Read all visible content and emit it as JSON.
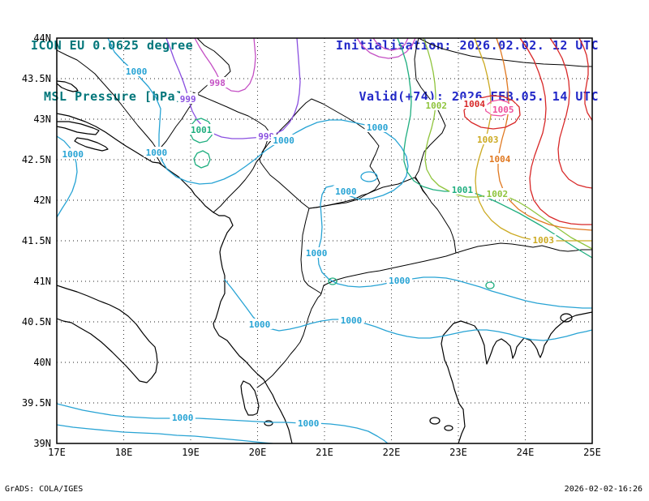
{
  "header": {
    "model": "ICON EU 0.0625 degree",
    "field": "MSL Pressure [hPa]",
    "init": "Initialisation: 2026.02.02. 12 UTC",
    "valid": "Valid(+74): 2026.FEB.05. 14 UTC"
  },
  "footer": {
    "left": "GrADS: COLA/IGES",
    "right": "2026-02-02-16:26"
  },
  "axes": {
    "y": [
      "44N",
      "43.5N",
      "43N",
      "42.5N",
      "42N",
      "41.5N",
      "41N",
      "40.5N",
      "40N",
      "39.5N",
      "39N"
    ],
    "x": [
      "17E",
      "18E",
      "19E",
      "20E",
      "21E",
      "22E",
      "23E",
      "24E",
      "25E"
    ]
  },
  "colors": {
    "header_left": "#00767a",
    "header_right": "#2228c8",
    "grid": "#222222",
    "land": "#000000",
    "c998": "#c44fc4",
    "c999": "#8a4fe0",
    "c1000": "#27a3d4",
    "c1001": "#1fae7f",
    "c1002": "#8fc43c",
    "c1003": "#ccaa22",
    "c1004": "#e07820",
    "c1005": "#ee4f9c",
    "red": "#d82828"
  },
  "chart_data": {
    "type": "contour_map",
    "title": "ICON EU 0.0625 degree — MSL Pressure [hPa]",
    "field": "MSL Pressure",
    "units": "hPa",
    "initialisation": "2026.02.02. 12 UTC",
    "valid": "Valid(+74): 2026.FEB.05. 14 UTC",
    "lon_range_deg_east": [
      17,
      25
    ],
    "lat_range_deg_north": [
      39,
      44
    ],
    "lon_tick_step_deg": 1,
    "lat_tick_step_deg": 0.5,
    "grid": "dotted",
    "contour_interval_hpa": 1,
    "contour_levels_hpa": [
      998,
      999,
      1000,
      1001,
      1002,
      1003,
      1004,
      1005
    ],
    "labeled_contours": [
      {
        "value": 1000,
        "lon": 18.19,
        "lat": 43.59
      },
      {
        "value": 999,
        "lon": 18.96,
        "lat": 43.25
      },
      {
        "value": 998,
        "lon": 19.4,
        "lat": 43.45
      },
      {
        "value": 1000,
        "lon": 17.24,
        "lat": 42.57
      },
      {
        "value": 1000,
        "lon": 18.49,
        "lat": 42.59
      },
      {
        "value": 1001,
        "lon": 19.16,
        "lat": 42.87
      },
      {
        "value": 999,
        "lon": 20.13,
        "lat": 42.79
      },
      {
        "value": 1000,
        "lon": 20.39,
        "lat": 42.74
      },
      {
        "value": 1000,
        "lon": 21.79,
        "lat": 42.9
      },
      {
        "value": 1002,
        "lon": 22.67,
        "lat": 43.17
      },
      {
        "value": 1004,
        "lon": 23.24,
        "lat": 43.19,
        "ck": "red"
      },
      {
        "value": 1005,
        "lon": 23.67,
        "lat": 43.12
      },
      {
        "value": 1003,
        "lon": 23.44,
        "lat": 42.75
      },
      {
        "value": 1004,
        "lon": 23.62,
        "lat": 42.51
      },
      {
        "value": 1001,
        "lon": 23.06,
        "lat": 42.13
      },
      {
        "value": 1002,
        "lon": 23.58,
        "lat": 42.08
      },
      {
        "value": 1000,
        "lon": 21.32,
        "lat": 42.11
      },
      {
        "value": 1000,
        "lon": 20.88,
        "lat": 41.35
      },
      {
        "value": 1003,
        "lon": 24.27,
        "lat": 41.51
      },
      {
        "value": 1000,
        "lon": 22.12,
        "lat": 41.01
      },
      {
        "value": 1000,
        "lon": 20.03,
        "lat": 40.47
      },
      {
        "value": 1000,
        "lon": 21.4,
        "lat": 40.52
      },
      {
        "value": 1000,
        "lon": 18.88,
        "lat": 39.32
      },
      {
        "value": 1000,
        "lon": 20.76,
        "lat": 39.25
      }
    ]
  }
}
